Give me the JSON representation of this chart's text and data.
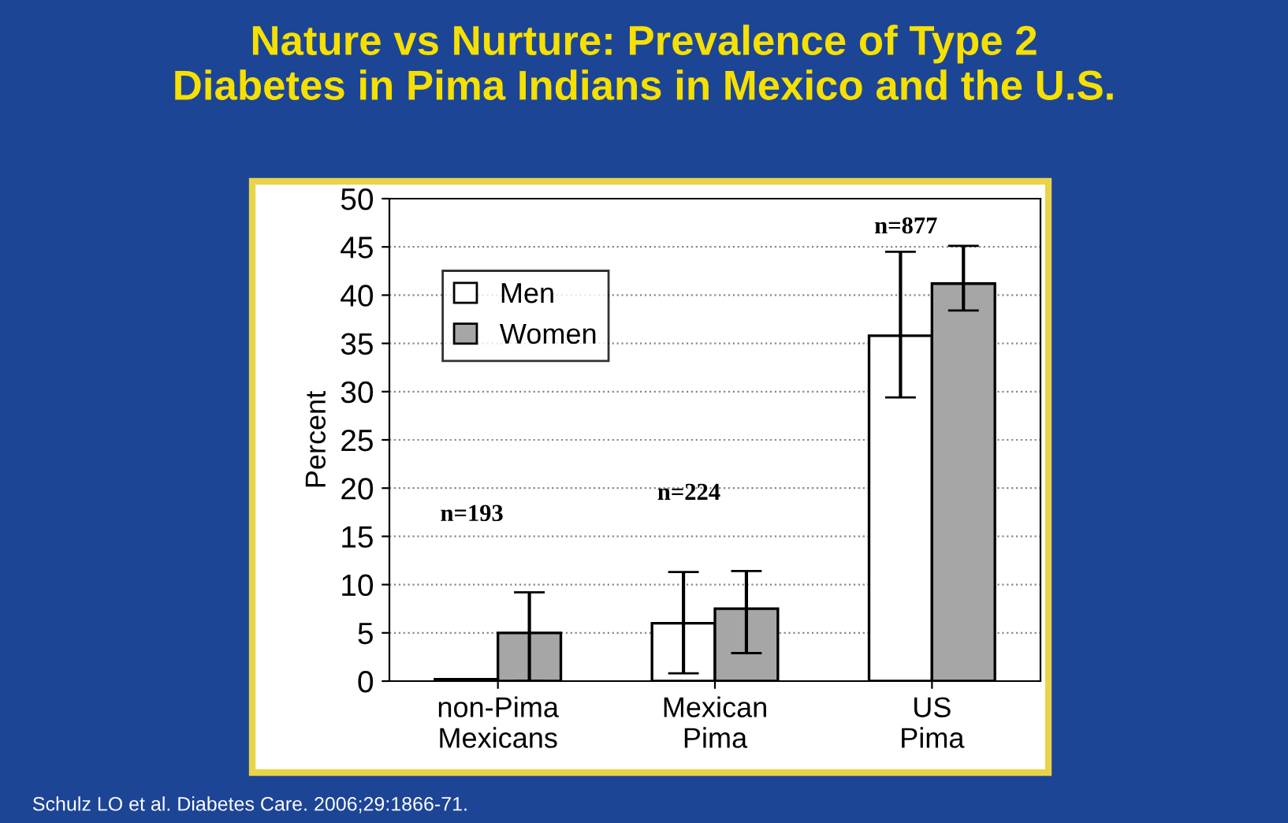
{
  "chart_data": {
    "type": "bar",
    "title": "Nature vs Nurture: Prevalence of Type 2\nDiabetes in Pima Indians in Mexico and the U.S.",
    "ylabel": "Percent",
    "categories": [
      "non-Pima\nMexicans",
      "Mexican\nPima",
      "US\nPima"
    ],
    "series": [
      {
        "name": "Men",
        "color": "#ffffff",
        "values": [
          0.2,
          6,
          35.8
        ],
        "errors": [
          null,
          [
            0.8,
            11.3
          ],
          [
            29.4,
            44.5
          ]
        ]
      },
      {
        "name": "Women",
        "color": "#a6a6a6",
        "values": [
          5,
          7.5,
          41.2
        ],
        "errors": [
          [
            0,
            9.2
          ],
          [
            2.9,
            11.4
          ],
          [
            38.4,
            45.1
          ]
        ]
      }
    ],
    "ylim": [
      0,
      50
    ],
    "yticks": [
      0,
      5,
      10,
      15,
      20,
      25,
      30,
      35,
      40,
      45,
      50
    ],
    "grid": "y",
    "legend": "top left",
    "annotations": [
      "n=193",
      "n=224",
      "n=877",
      "Schulz LO et al. Diabetes Care. 2006;29:1866-71."
    ]
  }
}
